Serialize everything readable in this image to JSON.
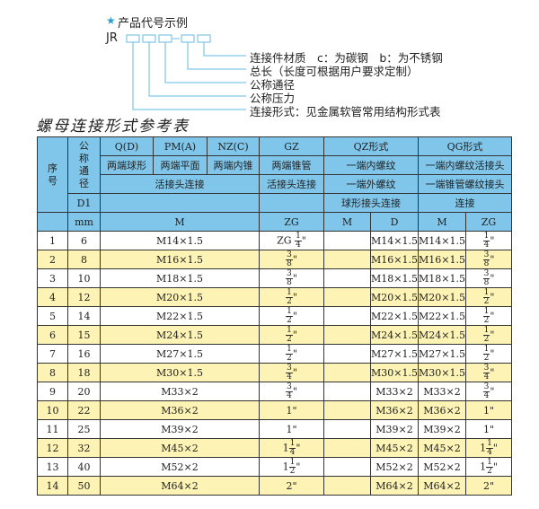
{
  "diagram": {
    "title": "产品代号示例",
    "code_prefix": "JR",
    "labels": [
      "连接件材质　c：为碳钢　b：为不锈钢",
      "总长（长度可根据用户要求定制）",
      "公称通径",
      "公称压力",
      "连接形式：见金属软管常用结构形式表"
    ],
    "accent": "#2a9fd6"
  },
  "table_title": "螺母连接形式参考表",
  "header": {
    "seq": "序号",
    "nominal": "公称通径",
    "q": "Q(D)",
    "pm": "PM(A)",
    "nz": "NZ(C)",
    "gz": "GZ",
    "qz": "QZ形式",
    "qg": "QG形式",
    "q2": "两端球形",
    "pm2": "两端平面",
    "nz2": "两端内锥",
    "gz2": "两端锥管",
    "qz2": "一端内螺纹",
    "qg2": "一端内螺纹活接头",
    "union": "活接头连接",
    "gz3": "活接头连接",
    "qz3": "一端外螺纹",
    "qg3": "一端锥管螺纹接头",
    "d1": "D1",
    "qz4": "球形接头连接",
    "qg4": "连接",
    "mm": "mm",
    "m": "M",
    "zg": "ZG",
    "qzm": "M",
    "qzd": "D",
    "qgm": "M",
    "qgzg": "ZG"
  },
  "colors": {
    "header": "#80c6ea",
    "stripe": "#fdf3b4"
  },
  "rows": [
    {
      "no": "1",
      "dn": "6",
      "m": "M14×1.5",
      "gz": {
        "pre": "ZG",
        "w": "",
        "n": "1",
        "d": "4"
      },
      "qzm": "",
      "qzd": "M14×1.5",
      "qgm": "M14×1.5",
      "qg": {
        "w": "",
        "n": "1",
        "d": "4"
      }
    },
    {
      "no": "2",
      "dn": "8",
      "m": "M16×1.5",
      "gz": {
        "pre": "",
        "w": "",
        "n": "3",
        "d": "8"
      },
      "qzm": "",
      "qzd": "M16×1.5",
      "qgm": "M16×1.5",
      "qg": {
        "w": "",
        "n": "3",
        "d": "8"
      }
    },
    {
      "no": "3",
      "dn": "10",
      "m": "M18×1.5",
      "gz": {
        "pre": "",
        "w": "",
        "n": "3",
        "d": "8"
      },
      "qzm": "",
      "qzd": "M18×1.5",
      "qgm": "M18×1.5",
      "qg": {
        "w": "",
        "n": "3",
        "d": "8"
      }
    },
    {
      "no": "4",
      "dn": "12",
      "m": "M20×1.5",
      "gz": {
        "pre": "",
        "w": "",
        "n": "1",
        "d": "2"
      },
      "qzm": "",
      "qzd": "M20×1.5",
      "qgm": "M20×1.5",
      "qg": {
        "w": "",
        "n": "1",
        "d": "2"
      }
    },
    {
      "no": "5",
      "dn": "14",
      "m": "M22×1.5",
      "gz": {
        "pre": "",
        "w": "",
        "n": "1",
        "d": "2"
      },
      "qzm": "",
      "qzd": "M22×1.5",
      "qgm": "M22×1.5",
      "qg": {
        "w": "",
        "n": "1",
        "d": "2"
      }
    },
    {
      "no": "6",
      "dn": "15",
      "m": "M24×1.5",
      "gz": {
        "pre": "",
        "w": "",
        "n": "1",
        "d": "2"
      },
      "qzm": "",
      "qzd": "M24×1.5",
      "qgm": "M24×1.5",
      "qg": {
        "w": "",
        "n": "1",
        "d": "2"
      }
    },
    {
      "no": "7",
      "dn": "16",
      "m": "M27×1.5",
      "gz": {
        "pre": "",
        "w": "",
        "n": "1",
        "d": "2"
      },
      "qzm": "",
      "qzd": "M27×1.5",
      "qgm": "M27×1.5",
      "qg": {
        "w": "",
        "n": "1",
        "d": "2"
      }
    },
    {
      "no": "8",
      "dn": "18",
      "m": "M30×1.5",
      "gz": {
        "pre": "",
        "w": "",
        "n": "3",
        "d": "4"
      },
      "qzm": "",
      "qzd": "M30×1.5",
      "qgm": "M30×1.5",
      "qg": {
        "w": "",
        "n": "3",
        "d": "4"
      }
    },
    {
      "no": "9",
      "dn": "20",
      "m": "M33×2",
      "gz": {
        "pre": "",
        "w": "",
        "n": "3",
        "d": "4"
      },
      "qzm": "",
      "qzd": "M33×2",
      "qgm": "M33×2",
      "qg": {
        "w": "",
        "n": "3",
        "d": "4"
      }
    },
    {
      "no": "10",
      "dn": "22",
      "m": "M36×2",
      "gz": {
        "pre": "",
        "w": "1",
        "n": "",
        "d": ""
      },
      "qzm": "",
      "qzd": "M36×2",
      "qgm": "M36×2",
      "qg": {
        "w": "1",
        "n": "",
        "d": ""
      }
    },
    {
      "no": "11",
      "dn": "25",
      "m": "M39×2",
      "gz": {
        "pre": "",
        "w": "1",
        "n": "",
        "d": ""
      },
      "qzm": "",
      "qzd": "M39×2",
      "qgm": "M39×2",
      "qg": {
        "w": "1",
        "n": "",
        "d": ""
      }
    },
    {
      "no": "12",
      "dn": "32",
      "m": "M45×2",
      "gz": {
        "pre": "",
        "w": "1",
        "n": "1",
        "d": "4"
      },
      "qzm": "",
      "qzd": "M45×2",
      "qgm": "M45×2",
      "qg": {
        "w": "1",
        "n": "1",
        "d": "4"
      }
    },
    {
      "no": "13",
      "dn": "40",
      "m": "M52×2",
      "gz": {
        "pre": "",
        "w": "1",
        "n": "1",
        "d": "2"
      },
      "qzm": "",
      "qzd": "M52×2",
      "qgm": "M52×2",
      "qg": {
        "w": "1",
        "n": "1",
        "d": "2"
      }
    },
    {
      "no": "14",
      "dn": "50",
      "m": "M64×2",
      "gz": {
        "pre": "",
        "w": "2",
        "n": "",
        "d": ""
      },
      "qzm": "",
      "qzd": "M64×2",
      "qgm": "M64×2",
      "qg": {
        "w": "2",
        "n": "",
        "d": ""
      }
    }
  ]
}
